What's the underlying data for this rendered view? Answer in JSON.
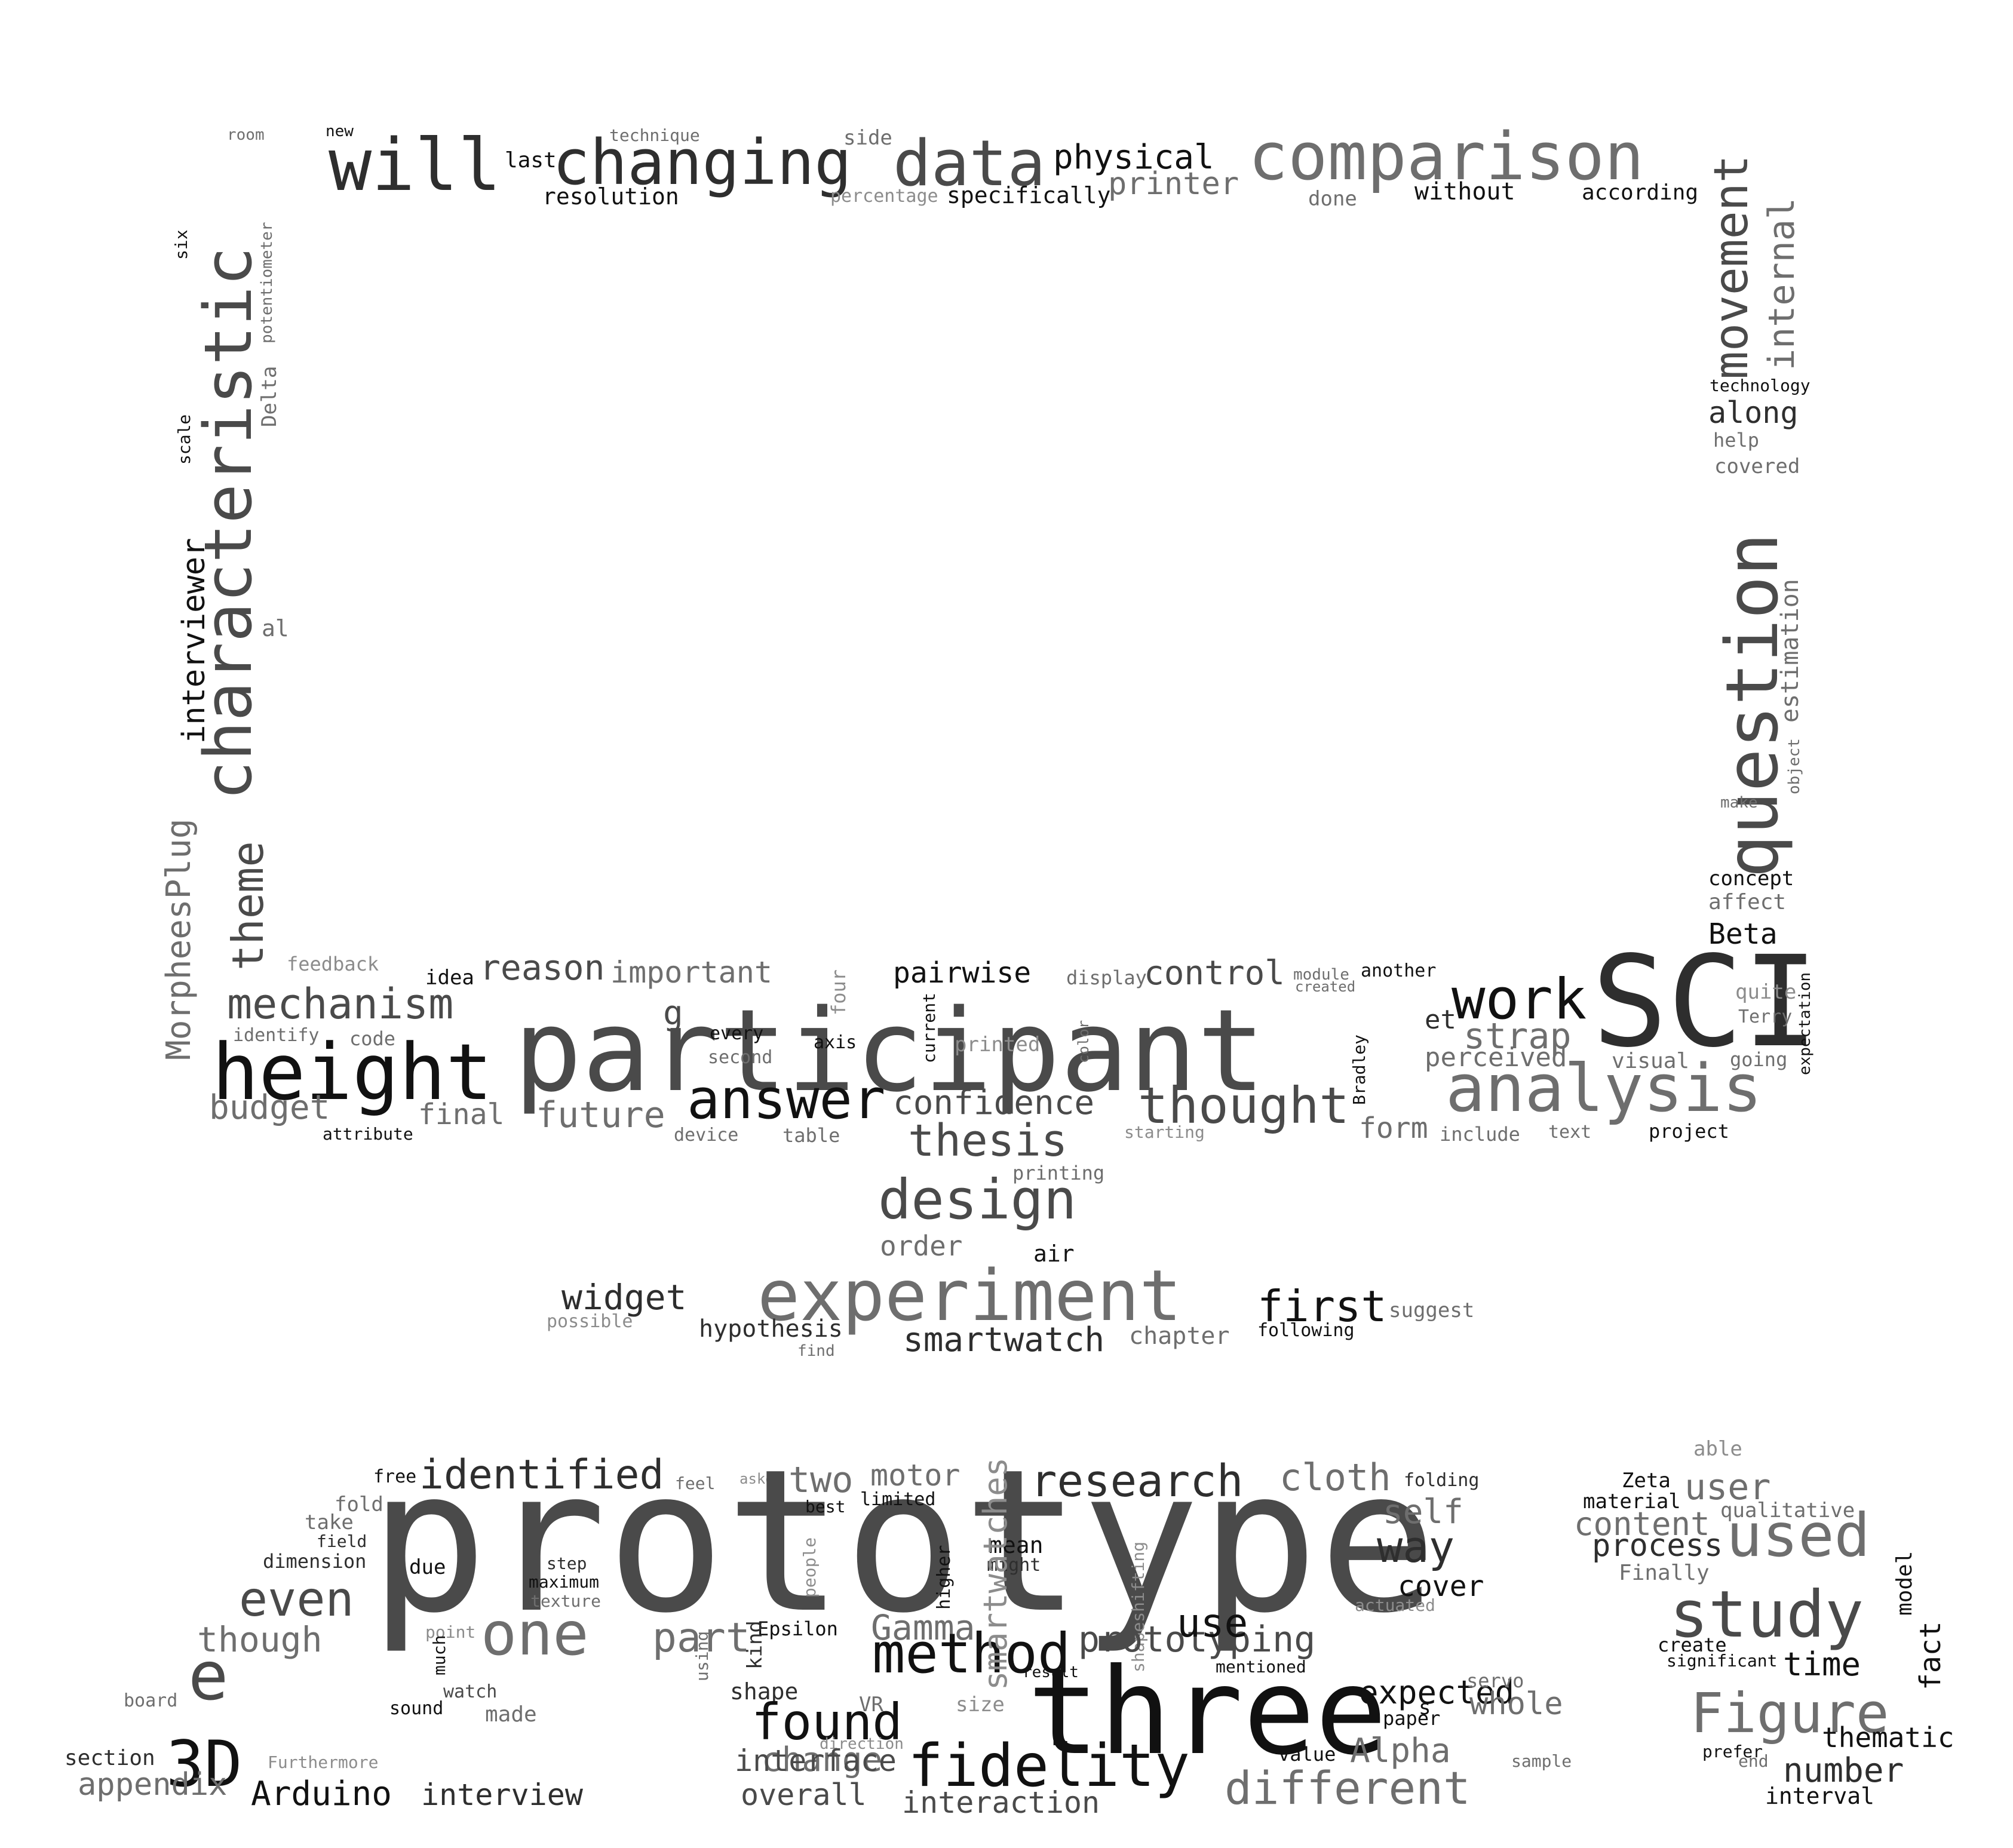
{
  "palette": {
    "background": "#ffffff",
    "black": "#111111",
    "dark": "#2e2e2e",
    "mid": "#4a4a4a",
    "gray": "#6e6e6e",
    "light": "#8c8c8c"
  },
  "words": [
    {
      "t": "room",
      "c": "gray"
    },
    {
      "t": "new",
      "c": "black"
    },
    {
      "t": "will",
      "c": "dark"
    },
    {
      "t": "last",
      "c": "black"
    },
    {
      "t": "technique",
      "c": "gray"
    },
    {
      "t": "changing",
      "c": "dark"
    },
    {
      "t": "resolution",
      "c": "black"
    },
    {
      "t": "side",
      "c": "gray"
    },
    {
      "t": "data",
      "c": "mid"
    },
    {
      "t": "percentage",
      "c": "light"
    },
    {
      "t": "specifically",
      "c": "black"
    },
    {
      "t": "physical",
      "c": "black"
    },
    {
      "t": "printer",
      "c": "gray"
    },
    {
      "t": "comparison",
      "c": "gray"
    },
    {
      "t": "done",
      "c": "gray"
    },
    {
      "t": "without",
      "c": "black"
    },
    {
      "t": "according",
      "c": "black"
    },
    {
      "t": "characteristic",
      "c": "mid"
    },
    {
      "t": "interviewer",
      "c": "black"
    },
    {
      "t": "six",
      "c": "black"
    },
    {
      "t": "potentiometer",
      "c": "gray"
    },
    {
      "t": "Delta",
      "c": "gray"
    },
    {
      "t": "scale",
      "c": "black"
    },
    {
      "t": "al",
      "c": "gray"
    },
    {
      "t": "MorpheesPlug",
      "c": "gray"
    },
    {
      "t": "theme",
      "c": "mid"
    },
    {
      "t": "movement",
      "c": "mid"
    },
    {
      "t": "internal",
      "c": "gray"
    },
    {
      "t": "technology",
      "c": "black"
    },
    {
      "t": "along",
      "c": "dark"
    },
    {
      "t": "help",
      "c": "gray"
    },
    {
      "t": "covered",
      "c": "gray"
    },
    {
      "t": "question",
      "c": "mid"
    },
    {
      "t": "estimation",
      "c": "gray"
    },
    {
      "t": "object",
      "c": "gray"
    },
    {
      "t": "make",
      "c": "gray"
    },
    {
      "t": "concept",
      "c": "black"
    },
    {
      "t": "affect",
      "c": "gray"
    },
    {
      "t": "Beta",
      "c": "black"
    },
    {
      "t": "feedback",
      "c": "light"
    },
    {
      "t": "idea",
      "c": "black"
    },
    {
      "t": "reason",
      "c": "mid"
    },
    {
      "t": "important",
      "c": "gray"
    },
    {
      "t": "four",
      "c": "light"
    },
    {
      "t": "pairwise",
      "c": "black"
    },
    {
      "t": "display",
      "c": "gray"
    },
    {
      "t": "control",
      "c": "mid"
    },
    {
      "t": "module",
      "c": "gray"
    },
    {
      "t": "created",
      "c": "gray"
    },
    {
      "t": "another",
      "c": "black"
    },
    {
      "t": "mechanism",
      "c": "mid"
    },
    {
      "t": "identify",
      "c": "gray"
    },
    {
      "t": "code",
      "c": "gray"
    },
    {
      "t": "height",
      "c": "black"
    },
    {
      "t": "participant",
      "c": "mid"
    },
    {
      "t": "g",
      "c": "mid"
    },
    {
      "t": "every",
      "c": "black"
    },
    {
      "t": "second",
      "c": "gray"
    },
    {
      "t": "axis",
      "c": "black"
    },
    {
      "t": "current",
      "c": "black"
    },
    {
      "t": "printed",
      "c": "light"
    },
    {
      "t": "color",
      "c": "gray"
    },
    {
      "t": "work",
      "c": "black"
    },
    {
      "t": "SCI",
      "c": "dark"
    },
    {
      "t": "et",
      "c": "dark"
    },
    {
      "t": "strap",
      "c": "gray"
    },
    {
      "t": "Bradley",
      "c": "black"
    },
    {
      "t": "perceived",
      "c": "gray"
    },
    {
      "t": "quite",
      "c": "light"
    },
    {
      "t": "Terry",
      "c": "gray"
    },
    {
      "t": "expectation",
      "c": "black"
    },
    {
      "t": "visual",
      "c": "gray"
    },
    {
      "t": "going",
      "c": "gray"
    },
    {
      "t": "budget",
      "c": "gray"
    },
    {
      "t": "final",
      "c": "gray"
    },
    {
      "t": "future",
      "c": "gray"
    },
    {
      "t": "answer",
      "c": "black"
    },
    {
      "t": "confidence",
      "c": "mid"
    },
    {
      "t": "thought",
      "c": "mid"
    },
    {
      "t": "analysis",
      "c": "gray"
    },
    {
      "t": "attribute",
      "c": "black"
    },
    {
      "t": "device",
      "c": "gray"
    },
    {
      "t": "table",
      "c": "gray"
    },
    {
      "t": "starting",
      "c": "light"
    },
    {
      "t": "form",
      "c": "gray"
    },
    {
      "t": "include",
      "c": "gray"
    },
    {
      "t": "text",
      "c": "gray"
    },
    {
      "t": "project",
      "c": "black"
    },
    {
      "t": "thesis",
      "c": "mid"
    },
    {
      "t": "printing",
      "c": "gray"
    },
    {
      "t": "design",
      "c": "mid"
    },
    {
      "t": "order",
      "c": "gray"
    },
    {
      "t": "air",
      "c": "black"
    },
    {
      "t": "widget",
      "c": "dark"
    },
    {
      "t": "experiment",
      "c": "gray"
    },
    {
      "t": "first",
      "c": "black"
    },
    {
      "t": "suggest",
      "c": "gray"
    },
    {
      "t": "possible",
      "c": "light"
    },
    {
      "t": "hypothesis",
      "c": "dark"
    },
    {
      "t": "find",
      "c": "gray"
    },
    {
      "t": "smartwatch",
      "c": "dark"
    },
    {
      "t": "chapter",
      "c": "gray"
    },
    {
      "t": "following",
      "c": "black"
    },
    {
      "t": "free",
      "c": "black"
    },
    {
      "t": "identified",
      "c": "dark"
    },
    {
      "t": "feel",
      "c": "gray"
    },
    {
      "t": "asked",
      "c": "light"
    },
    {
      "t": "two",
      "c": "gray"
    },
    {
      "t": "motor",
      "c": "gray"
    },
    {
      "t": "research",
      "c": "dark"
    },
    {
      "t": "cloth",
      "c": "gray"
    },
    {
      "t": "folding",
      "c": "dark"
    },
    {
      "t": "fold",
      "c": "gray"
    },
    {
      "t": "take",
      "c": "gray"
    },
    {
      "t": "field",
      "c": "dark"
    },
    {
      "t": "dimension",
      "c": "dark"
    },
    {
      "t": "prototype",
      "c": "mid"
    },
    {
      "t": "best",
      "c": "black"
    },
    {
      "t": "limited",
      "c": "black"
    },
    {
      "t": "self",
      "c": "gray"
    },
    {
      "t": "way",
      "c": "dark"
    },
    {
      "t": "cover",
      "c": "black"
    },
    {
      "t": "even",
      "c": "mid"
    },
    {
      "t": "due",
      "c": "black"
    },
    {
      "t": "step",
      "c": "dark"
    },
    {
      "t": "maximum",
      "c": "black"
    },
    {
      "t": "texture",
      "c": "gray"
    },
    {
      "t": "people",
      "c": "light"
    },
    {
      "t": "higher",
      "c": "black"
    },
    {
      "t": "mean",
      "c": "black"
    },
    {
      "t": "might",
      "c": "dark"
    },
    {
      "t": "shapeshifting",
      "c": "light"
    },
    {
      "t": "actuated",
      "c": "light"
    },
    {
      "t": "though",
      "c": "gray"
    },
    {
      "t": "point",
      "c": "light"
    },
    {
      "t": "one",
      "c": "gray"
    },
    {
      "t": "part",
      "c": "gray"
    },
    {
      "t": "Epsilon",
      "c": "black"
    },
    {
      "t": "Gamma",
      "c": "gray"
    },
    {
      "t": "prototyping",
      "c": "mid"
    },
    {
      "t": "use",
      "c": "black"
    },
    {
      "t": "much",
      "c": "black"
    },
    {
      "t": "using",
      "c": "gray"
    },
    {
      "t": "kind",
      "c": "dark"
    },
    {
      "t": "method",
      "c": "black"
    },
    {
      "t": "smartwatches",
      "c": "light"
    },
    {
      "t": "result",
      "c": "black"
    },
    {
      "t": "mentioned",
      "c": "black"
    },
    {
      "t": "e",
      "c": "mid"
    },
    {
      "t": "watch",
      "c": "mid"
    },
    {
      "t": "shape",
      "c": "dark"
    },
    {
      "t": "three",
      "c": "black"
    },
    {
      "t": "expected",
      "c": "black"
    },
    {
      "t": "servo",
      "c": "gray"
    },
    {
      "t": "board",
      "c": "gray"
    },
    {
      "t": "sound",
      "c": "black"
    },
    {
      "t": "made",
      "c": "gray"
    },
    {
      "t": "VR",
      "c": "gray"
    },
    {
      "t": "size",
      "c": "light"
    },
    {
      "t": "whole",
      "c": "gray"
    },
    {
      "t": "paper",
      "c": "black"
    },
    {
      "t": "3D",
      "c": "black"
    },
    {
      "t": "found",
      "c": "black"
    },
    {
      "t": "s",
      "c": "black"
    },
    {
      "t": "change",
      "c": "gray"
    },
    {
      "t": "direction",
      "c": "light"
    },
    {
      "t": "Alpha",
      "c": "gray"
    },
    {
      "t": "section",
      "c": "dark"
    },
    {
      "t": "Furthermore",
      "c": "light"
    },
    {
      "t": "interface",
      "c": "mid"
    },
    {
      "t": "fidelity",
      "c": "black"
    },
    {
      "t": "value",
      "c": "black"
    },
    {
      "t": "sample",
      "c": "gray"
    },
    {
      "t": "appendix",
      "c": "gray"
    },
    {
      "t": "Arduino",
      "c": "black"
    },
    {
      "t": "interview",
      "c": "dark"
    },
    {
      "t": "overall",
      "c": "mid"
    },
    {
      "t": "interaction",
      "c": "mid"
    },
    {
      "t": "different",
      "c": "gray"
    },
    {
      "t": "able",
      "c": "light"
    },
    {
      "t": "Zeta",
      "c": "black"
    },
    {
      "t": "user",
      "c": "gray"
    },
    {
      "t": "material",
      "c": "black"
    },
    {
      "t": "content",
      "c": "gray"
    },
    {
      "t": "qualitative",
      "c": "gray"
    },
    {
      "t": "process",
      "c": "dark"
    },
    {
      "t": "used",
      "c": "gray"
    },
    {
      "t": "Finally",
      "c": "gray"
    },
    {
      "t": "study",
      "c": "mid"
    },
    {
      "t": "model",
      "c": "black"
    },
    {
      "t": "create",
      "c": "black"
    },
    {
      "t": "significant",
      "c": "black"
    },
    {
      "t": "time",
      "c": "black"
    },
    {
      "t": "fact",
      "c": "black"
    },
    {
      "t": "Figure",
      "c": "gray"
    },
    {
      "t": "prefer",
      "c": "black"
    },
    {
      "t": "thematic",
      "c": "black"
    },
    {
      "t": "end",
      "c": "gray"
    },
    {
      "t": "number",
      "c": "dark"
    },
    {
      "t": "interval",
      "c": "black"
    }
  ]
}
